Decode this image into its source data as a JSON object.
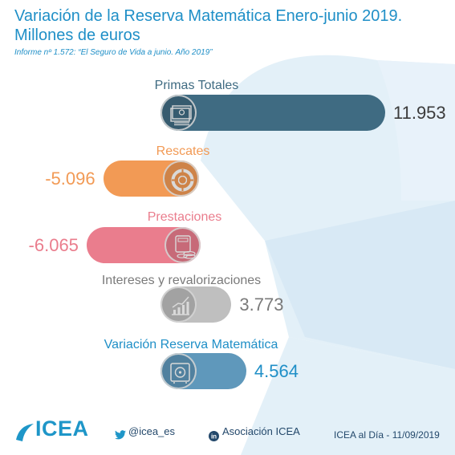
{
  "title": "Variación de la Reserva Matemática Enero-junio 2019. Millones de euros",
  "subtitle": "Informe nº 1.572: “El Seguro de Vida a junio. Año 2019”",
  "colors": {
    "title": "#1f8fc7",
    "primas": "#3f6b82",
    "rescates": "#f29a55",
    "prestaciones": "#ea7d8d",
    "intereses": "#bfbfbf",
    "variacion": "#5f98bb",
    "footer": "#23486b",
    "background_shape": "#dcecf6"
  },
  "chart_data": {
    "type": "bar",
    "categories": [
      "Primas Totales",
      "Rescates",
      "Prestaciones",
      "Intereses y revalorizaciones",
      "Variación Reserva Matemática"
    ],
    "values": [
      11953,
      -5096,
      -6065,
      3773,
      4564
    ],
    "value_labels": [
      "11.953",
      "-5.096",
      "-6.065",
      "3.773",
      "4.564"
    ],
    "icons": [
      "money-stack-icon",
      "lifebuoy-icon",
      "calculator-coins-icon",
      "growth-chart-icon",
      "safe-icon"
    ],
    "xlabel": "",
    "ylabel": ""
  },
  "footer": {
    "logo": "ICEA",
    "twitter_handle": "@icea_es",
    "linkedin_name": "Asociación ICEA",
    "date_text": "ICEA al Día - 11/09/2019"
  }
}
